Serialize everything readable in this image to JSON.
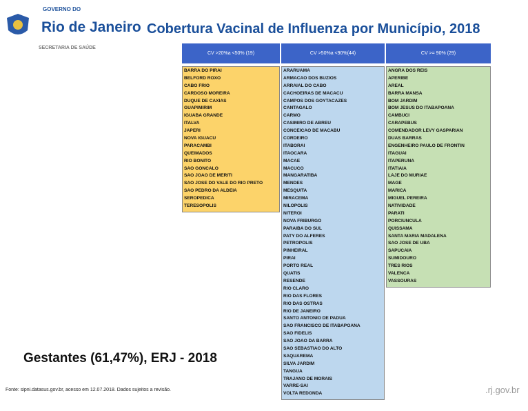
{
  "header": {
    "gov_small": "GOVERNO DO",
    "gov_big": "Rio de Janeiro",
    "title": "Cobertura Vacinal de Influenza por Município, 2018",
    "subtitle": "SECRETARIA DE SAÚDE"
  },
  "table": {
    "columns": [
      {
        "header": "CV >20%a <50% (19)",
        "rows": [
          "BARRA DO PIRAI",
          "BELFORD ROXO",
          "CABO FRIO",
          "CARDOSO MOREIRA",
          "DUQUE DE CAXIAS",
          "GUAPIMIRIM",
          "IGUABA GRANDE",
          "ITALVA",
          "JAPERI",
          "NOVA IGUACU",
          "PARACAMBI",
          "QUEIMADOS",
          "RIO BONITO",
          "SAO GONCALO",
          "SAO JOAO DE MERITI",
          "SAO JOSE DO VALE DO RIO PRETO",
          "SAO PEDRO DA ALDEIA",
          "SEROPEDICA",
          "TERESOPOLIS"
        ]
      },
      {
        "header": "CV >50%a <90%(44)",
        "rows": [
          "ARARUAMA",
          "ARMACAO DOS BUZIOS",
          "ARRAIAL DO CABO",
          "CACHOEIRAS DE MACACU",
          "CAMPOS DOS GOYTACAZES",
          "CANTAGALO",
          "CARMO",
          "CASIMIRO DE ABREU",
          "CONCEICAO DE MACABU",
          "CORDEIRO",
          "ITABORAI",
          "ITAOCARA",
          "MACAE",
          "MACUCO",
          "MANGARATIBA",
          "MENDES",
          "MESQUITA",
          "MIRACEMA",
          "NILOPOLIS",
          "NITEROI",
          "NOVA FRIBURGO",
          "PARAIBA DO SUL",
          "PATY DO ALFERES",
          "PETROPOLIS",
          "PINHEIRAL",
          "PIRAI",
          "PORTO REAL",
          "QUATIS",
          "RESENDE",
          "RIO CLARO",
          "RIO DAS FLORES",
          "RIO DAS OSTRAS",
          "RIO DE JANEIRO",
          "SANTO ANTONIO DE PADUA",
          "SAO FRANCISCO DE ITABAPOANA",
          "SAO FIDELIS",
          "SAO JOAO DA BARRA",
          "SAO SEBASTIAO DO ALTO",
          "SAQUAREMA",
          "SILVA JARDIM",
          "TANGUA",
          "TRAJANO DE MORAIS",
          "VARRE-SAI",
          "VOLTA REDONDA"
        ]
      },
      {
        "header": "CV >= 90% (29)",
        "rows": [
          "ANGRA DOS REIS",
          "APERIBE",
          "AREAL",
          "BARRA MANSA",
          "BOM JARDIM",
          "BOM JESUS DO ITABAPOANA",
          "CAMBUCI",
          "CARAPEBUS",
          "COMENDADOR LEVY GASPARIAN",
          "DUAS BARRAS",
          "ENGENHEIRO PAULO DE FRONTIN",
          "ITAGUAI",
          "ITAPERUNA",
          "ITATIAIA",
          "LAJE DO MURIAE",
          "MAGE",
          "MARICA",
          "MIGUEL PEREIRA",
          "NATIVIDADE",
          "PARATI",
          "PORCIUNCULA",
          "QUISSAMA",
          "SANTA MARIA MADALENA",
          "SAO JOSE DE UBA",
          "SAPUCAIA",
          "SUMIDOURO",
          "TRES RIOS",
          "VALENCA",
          "VASSOURAS"
        ]
      }
    ]
  },
  "footer": {
    "caption": "Gestantes (61,47%), ERJ - 2018",
    "source": "Fonte: sipni.datasus.gov.br, acesso em 12.07.2018. Dados sujeitos a revisão.",
    "site": ".rj.gov.br"
  }
}
